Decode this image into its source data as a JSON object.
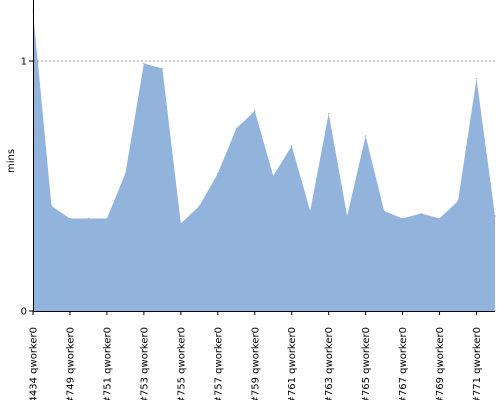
{
  "chart_data": {
    "type": "area",
    "ylabel": "mins",
    "ylim": [
      0,
      1.2
    ],
    "yticks": [
      {
        "label": "0",
        "value": 0
      },
      {
        "label": "1",
        "value": 1
      }
    ],
    "reference_line": 1,
    "x_tick_labels": [
      "#4434 qworker0",
      "#749 qworker0",
      "#751 qworker0",
      "#753 qworker0",
      "#755 qworker0",
      "#757 qworker0",
      "#759 qworker0",
      "#761 qworker0",
      "#763 qworker0",
      "#765 qworker0",
      "#767 qworker0",
      "#769 qworker0",
      "#771 qworker0"
    ],
    "x_count": 26,
    "values": [
      1.2,
      0.42,
      0.37,
      0.37,
      0.37,
      0.55,
      0.99,
      0.97,
      0.35,
      0.42,
      0.55,
      0.73,
      0.8,
      0.54,
      0.66,
      0.4,
      0.79,
      0.38,
      0.7,
      0.4,
      0.37,
      0.39,
      0.37,
      0.44,
      0.93,
      0.38
    ],
    "fill_color": "#91b3dc",
    "grid": false
  }
}
